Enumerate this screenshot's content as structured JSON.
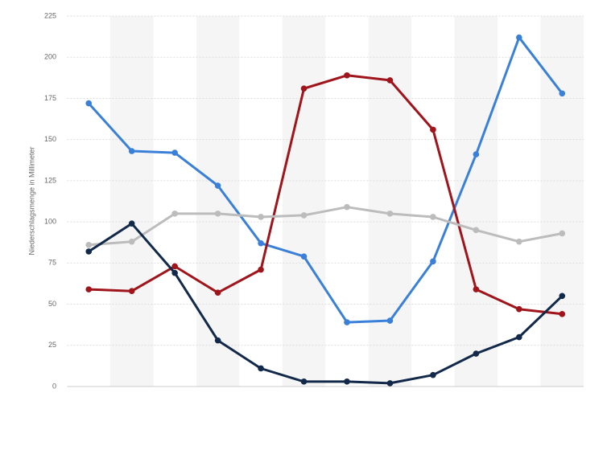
{
  "chart_data": {
    "type": "line",
    "y_label": "Niederschlagsmenge in Millimeter",
    "categories": [
      null,
      null,
      null,
      null,
      null,
      null,
      null,
      null,
      null,
      null,
      null,
      null
    ],
    "series": [
      {
        "color": "#3a80d8",
        "values": [
          172,
          143,
          142,
          122,
          87,
          79,
          39,
          40,
          76,
          141,
          212,
          178
        ]
      },
      {
        "color": "#a0141b",
        "values": [
          59,
          58,
          73,
          57,
          71,
          181,
          189,
          186,
          156,
          59,
          47,
          44
        ]
      },
      {
        "color": "#bcbcbc",
        "values": [
          86,
          88,
          105,
          105,
          103,
          104,
          109,
          105,
          103,
          95,
          88,
          93
        ]
      },
      {
        "color": "#12294a",
        "values": [
          82,
          99,
          69,
          28,
          11,
          3,
          3,
          2,
          7,
          20,
          30,
          55
        ]
      }
    ],
    "ylim": [
      0,
      225
    ],
    "yticks": [
      0,
      25,
      50,
      75,
      100,
      125,
      150,
      175,
      200,
      225
    ],
    "grid": true
  }
}
